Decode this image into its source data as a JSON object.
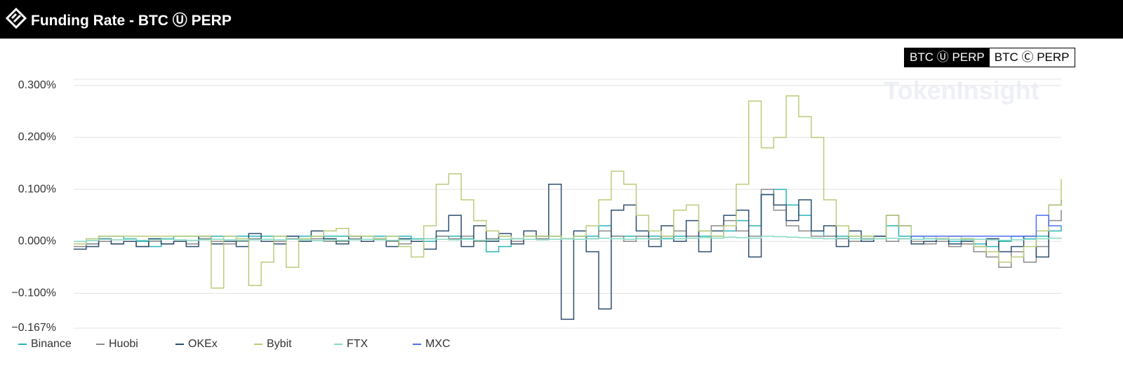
{
  "header": {
    "title": "Funding Rate - BTC Ⓤ PERP"
  },
  "toggle": [
    "BTC Ⓤ PERP",
    "BTC Ⓒ PERP"
  ],
  "watermark": "TokenInsight",
  "chart_data": {
    "type": "line",
    "step": true,
    "categories": [
      null,
      null,
      null,
      null,
      null,
      null,
      null,
      null,
      null,
      null,
      null,
      null,
      null,
      null,
      null,
      null,
      null,
      null,
      null,
      null,
      null,
      null,
      null,
      null,
      null,
      null,
      null,
      null,
      null,
      null,
      null,
      null,
      null,
      null,
      null,
      null,
      null,
      null,
      null,
      null,
      null,
      null,
      null,
      null,
      null,
      null,
      null,
      null,
      null,
      null,
      null,
      null,
      null,
      null,
      null,
      null,
      null,
      null,
      null,
      null,
      null,
      null,
      null,
      null,
      null,
      null,
      null,
      null,
      null,
      null,
      null,
      null,
      null,
      null,
      null,
      null,
      null,
      null,
      null,
      null
    ],
    "ylim": [
      -0.167,
      0.312
    ],
    "yticks": [
      {
        "value": -0.167,
        "label": "−0.167%"
      },
      {
        "value": -0.1,
        "label": "−0.100%"
      },
      {
        "value": 0,
        "label": "0.000%"
      },
      {
        "value": 0.1,
        "label": "0.100%"
      },
      {
        "value": 0.2,
        "label": "0.200%"
      },
      {
        "value": 0.3,
        "label": "0.300%"
      }
    ],
    "grid": true,
    "legend": "bottom-left",
    "series": [
      {
        "name": "Binance",
        "color": "#2bb3b8",
        "values": [
          0.0,
          -0.005,
          0.01,
          0.01,
          0.005,
          0.0,
          -0.01,
          0.005,
          0.01,
          0.01,
          0.005,
          0.01,
          0.01,
          0.01,
          0.01,
          0.01,
          0.01,
          0.01,
          0.01,
          0.01,
          0.01,
          0.01,
          0.01,
          0.01,
          0.01,
          0.01,
          0.01,
          0.005,
          0.0,
          0.01,
          0.01,
          0.005,
          0.0,
          -0.02,
          -0.01,
          0.005,
          0.01,
          0.01,
          0.01,
          0.005,
          0.01,
          0.01,
          0.03,
          0.01,
          0.01,
          0.01,
          0.01,
          0.005,
          0.01,
          0.01,
          0.01,
          0.01,
          0.02,
          0.04,
          0.03,
          0.09,
          0.1,
          0.07,
          0.05,
          0.02,
          0.01,
          0.01,
          0.01,
          0.01,
          0.01,
          0.03,
          0.01,
          0.01,
          0.005,
          0.0,
          0.0,
          0.005,
          -0.005,
          -0.01,
          0.0,
          0.01,
          0.005,
          0.01,
          0.02,
          0.03
        ]
      },
      {
        "name": "Huobi",
        "color": "#8a8a8a",
        "values": [
          -0.01,
          -0.005,
          0.0,
          -0.005,
          0.0,
          -0.01,
          0.0,
          -0.005,
          0.0,
          -0.005,
          0.005,
          0.0,
          -0.005,
          0.0,
          0.005,
          0.0,
          0.0,
          0.005,
          0.0,
          0.005,
          0.0,
          0.0,
          0.005,
          0.0,
          0.005,
          0.0,
          -0.005,
          0.0,
          0.005,
          0.01,
          0.005,
          0.01,
          0.0,
          0.005,
          0.01,
          0.0,
          0.01,
          0.005,
          0.01,
          0.005,
          0.01,
          0.005,
          0.02,
          0.01,
          0.0,
          0.01,
          0.005,
          0.01,
          0.02,
          0.01,
          0.02,
          0.03,
          0.04,
          0.02,
          0.01,
          0.1,
          0.06,
          0.03,
          0.02,
          0.01,
          0.01,
          0.005,
          0.0,
          0.005,
          0.01,
          0.0,
          0.005,
          0.0,
          -0.005,
          0.0,
          -0.01,
          -0.005,
          -0.02,
          -0.03,
          -0.05,
          -0.02,
          -0.04,
          -0.01,
          0.04,
          0.06
        ]
      },
      {
        "name": "OKEx",
        "color": "#2d4d6e",
        "values": [
          -0.015,
          -0.01,
          0.005,
          -0.005,
          0.0,
          -0.01,
          0.005,
          -0.005,
          0.0,
          -0.01,
          0.01,
          -0.005,
          0.0,
          -0.01,
          0.015,
          0.0,
          -0.005,
          0.01,
          0.0,
          0.02,
          0.005,
          -0.005,
          0.01,
          0.0,
          0.005,
          -0.01,
          0.005,
          0.0,
          -0.015,
          0.02,
          0.05,
          -0.01,
          0.03,
          0.0,
          0.015,
          -0.005,
          0.02,
          0.01,
          0.11,
          -0.15,
          0.02,
          -0.02,
          -0.13,
          0.06,
          0.07,
          0.02,
          -0.01,
          0.03,
          0.0,
          0.04,
          -0.02,
          0.02,
          0.05,
          0.06,
          -0.03,
          0.09,
          0.07,
          0.04,
          0.08,
          0.02,
          0.03,
          -0.01,
          0.02,
          0.0,
          0.01,
          0.05,
          0.03,
          -0.005,
          0.0,
          0.005,
          -0.005,
          0.0,
          -0.01,
          0.005,
          -0.02,
          -0.01,
          0.01,
          -0.03,
          0.07,
          0.08
        ]
      },
      {
        "name": "Bybit",
        "color": "#b9cc7a",
        "values": [
          -0.005,
          0.005,
          0.01,
          0.01,
          0.01,
          0.01,
          0.01,
          0.01,
          0.01,
          0.01,
          0.01,
          -0.09,
          0.01,
          0.005,
          -0.085,
          -0.04,
          0.01,
          -0.05,
          0.005,
          0.01,
          0.02,
          0.025,
          0.01,
          0.01,
          0.005,
          0.01,
          -0.01,
          -0.03,
          0.03,
          0.11,
          0.13,
          0.08,
          0.04,
          0.02,
          0.01,
          0.005,
          0.01,
          0.01,
          0.01,
          0.005,
          0.01,
          0.03,
          0.08,
          0.135,
          0.11,
          0.05,
          0.02,
          0.01,
          0.06,
          0.07,
          0.02,
          0.01,
          0.03,
          0.11,
          0.27,
          0.18,
          0.2,
          0.28,
          0.24,
          0.2,
          0.08,
          0.03,
          0.01,
          0.01,
          0.005,
          0.05,
          0.03,
          0.01,
          0.01,
          0.005,
          0.01,
          0.005,
          -0.01,
          -0.02,
          -0.04,
          -0.03,
          -0.01,
          0.02,
          0.07,
          0.12
        ]
      },
      {
        "name": "FTX",
        "color": "#86d8c4",
        "values": [
          0.0,
          0.002,
          0.004,
          0.003,
          0.004,
          0.002,
          0.003,
          0.004,
          0.003,
          0.002,
          0.003,
          0.004,
          0.003,
          0.002,
          0.003,
          0.004,
          0.003,
          0.004,
          0.003,
          0.002,
          0.003,
          0.002,
          0.003,
          0.004,
          0.003,
          0.002,
          0.003,
          0.004,
          0.005,
          0.004,
          0.003,
          0.004,
          0.002,
          0.003,
          0.004,
          0.005,
          0.004,
          0.003,
          0.004,
          0.005,
          0.004,
          0.005,
          0.006,
          0.005,
          0.004,
          0.005,
          0.004,
          0.006,
          0.005,
          0.006,
          0.007,
          0.006,
          0.008,
          0.007,
          0.006,
          0.01,
          0.009,
          0.008,
          0.007,
          0.006,
          0.005,
          0.006,
          0.005,
          0.004,
          0.005,
          0.006,
          0.005,
          0.004,
          0.005,
          0.004,
          0.004,
          0.003,
          0.004,
          0.003,
          0.002,
          0.003,
          0.004,
          0.005,
          0.006,
          0.005
        ]
      },
      {
        "name": "MXC",
        "color": "#4d6ef0",
        "values": [
          null,
          null,
          null,
          null,
          null,
          null,
          null,
          null,
          null,
          null,
          null,
          null,
          null,
          null,
          null,
          null,
          null,
          null,
          null,
          null,
          null,
          null,
          null,
          null,
          null,
          null,
          null,
          null,
          null,
          null,
          null,
          null,
          null,
          null,
          null,
          null,
          null,
          null,
          null,
          null,
          null,
          null,
          null,
          null,
          null,
          null,
          null,
          null,
          null,
          null,
          null,
          null,
          null,
          null,
          null,
          null,
          null,
          null,
          null,
          null,
          null,
          null,
          null,
          null,
          null,
          null,
          null,
          0.01,
          0.01,
          0.01,
          0.01,
          0.01,
          0.01,
          0.01,
          0.01,
          0.01,
          0.01,
          0.05,
          0.03,
          0.03
        ]
      }
    ]
  }
}
